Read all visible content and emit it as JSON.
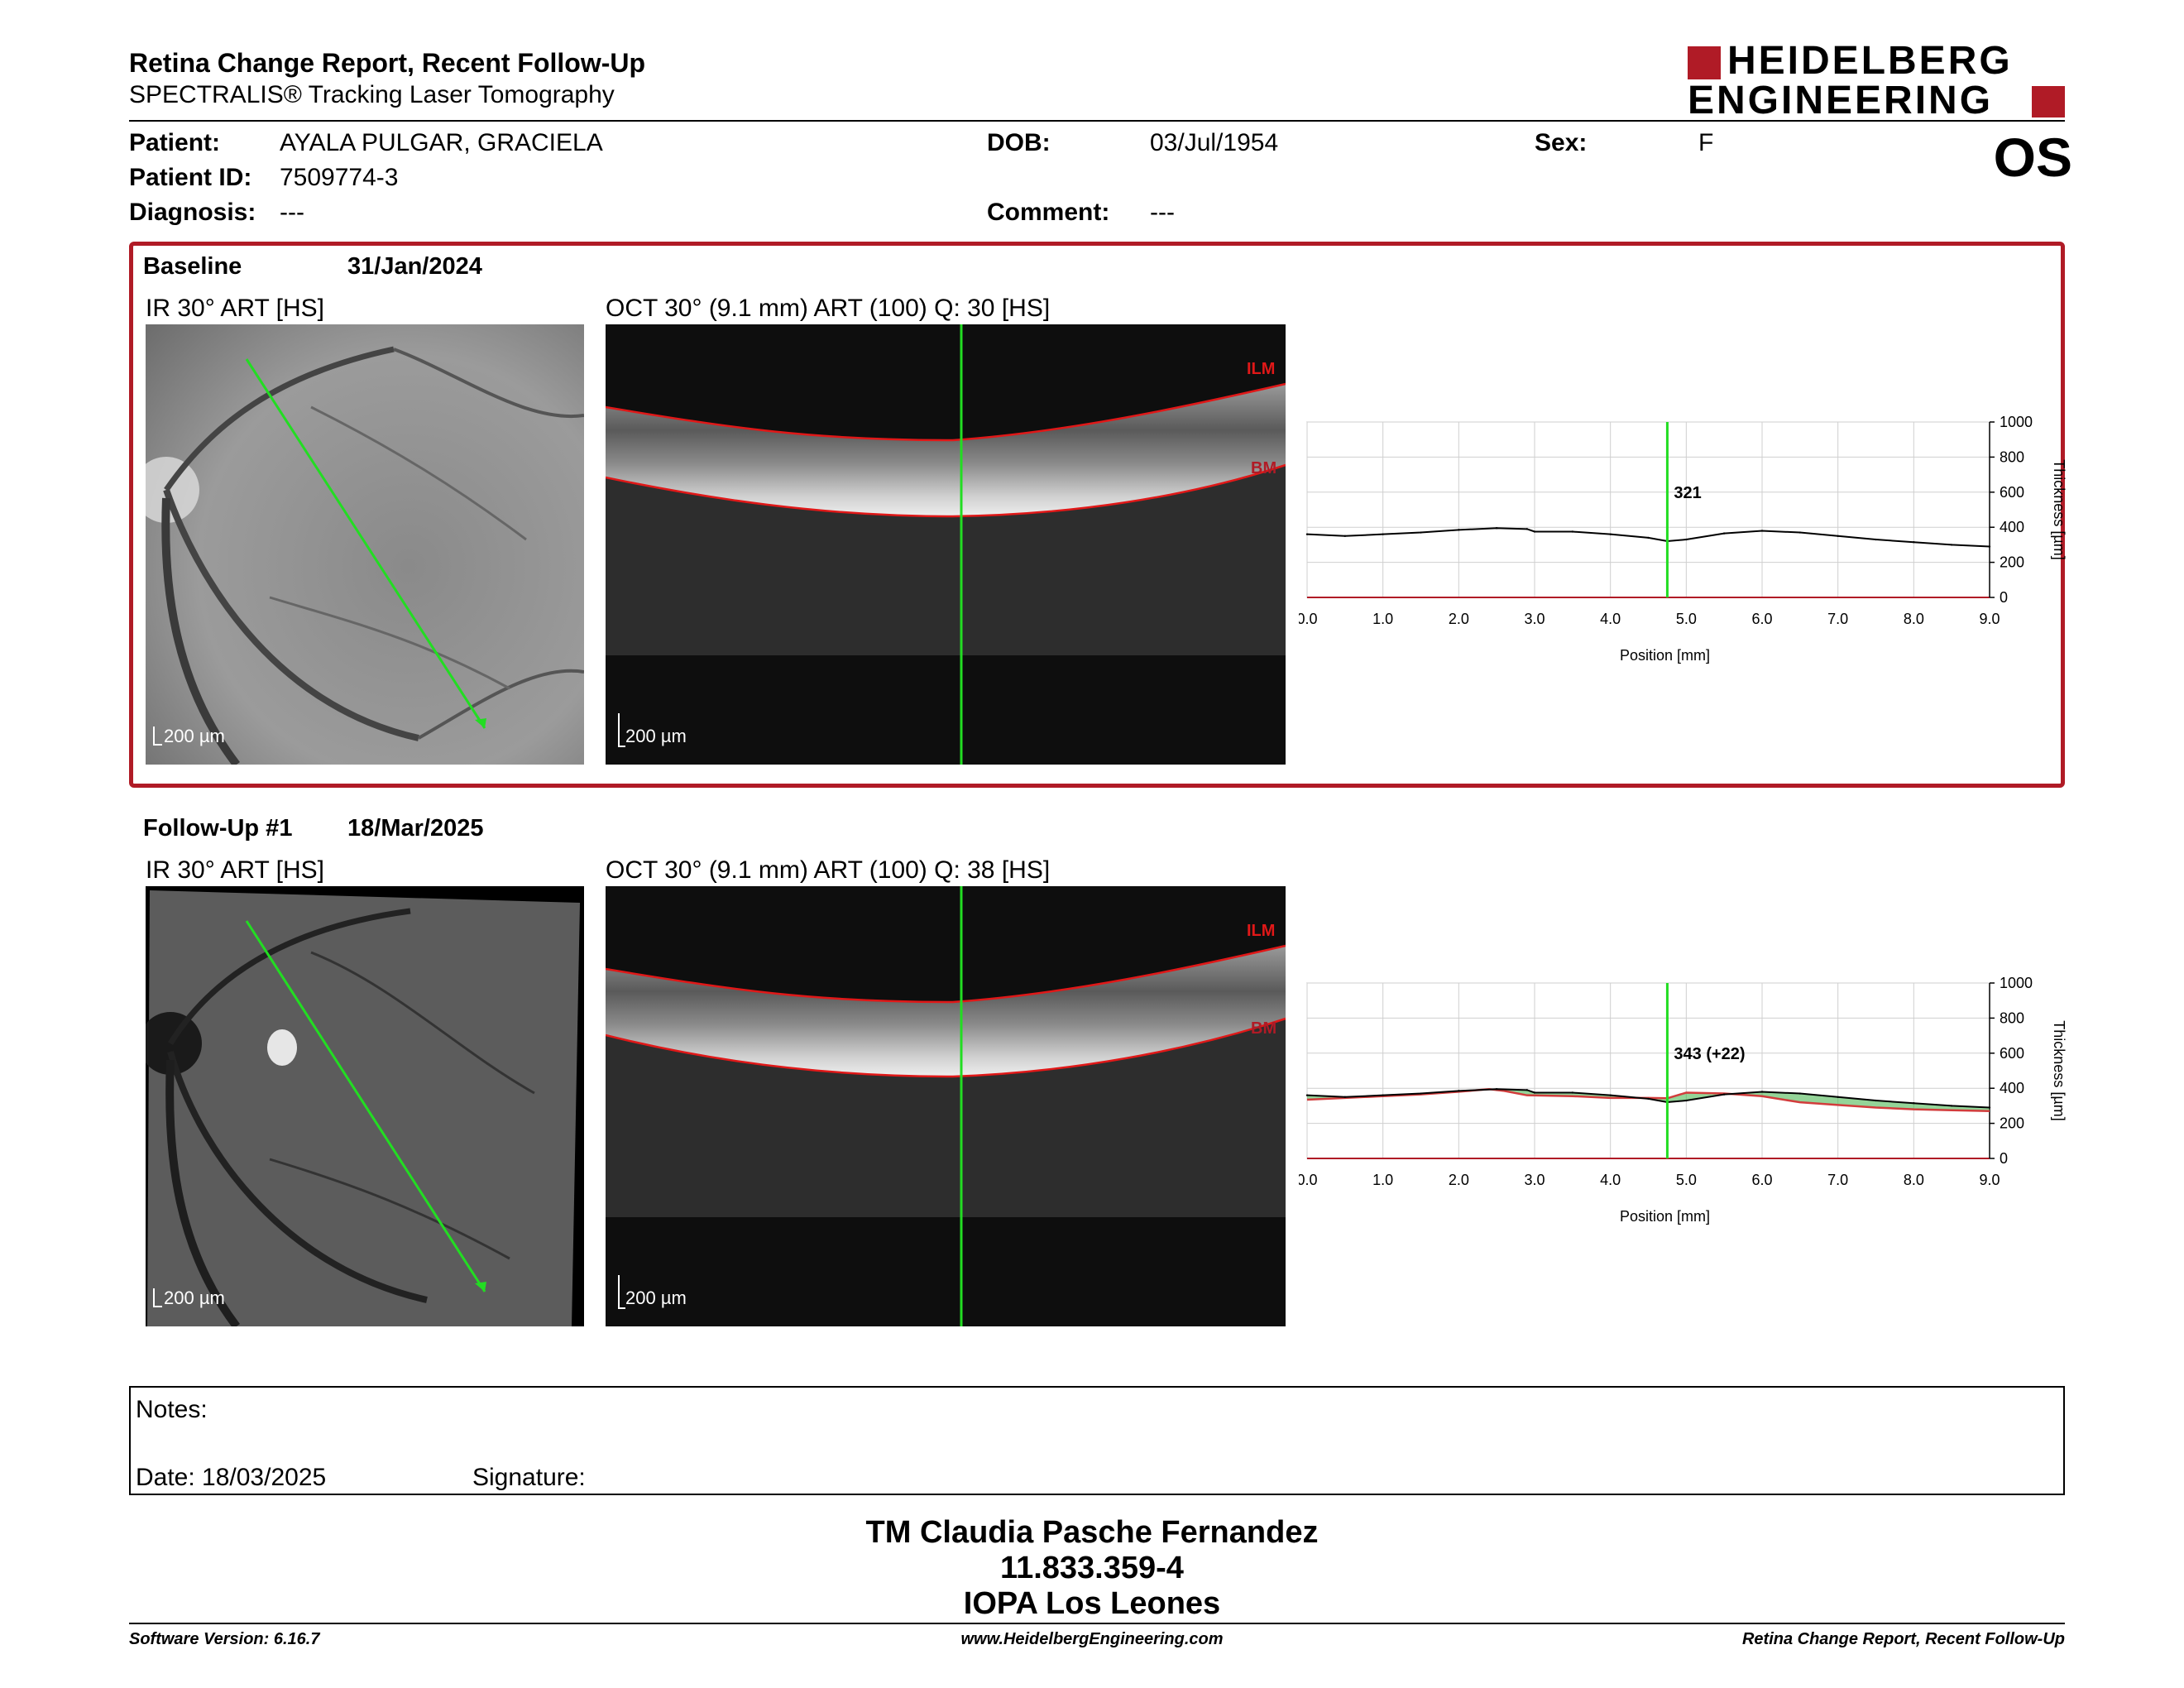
{
  "header": {
    "title": "Retina Change Report, Recent Follow-Up",
    "subtitle": "SPECTRALIS® Tracking Laser Tomography",
    "logo_line1": "HEIDELBERG",
    "logo_line2": "ENGINEERING",
    "eye": "OS"
  },
  "patient": {
    "patient_label": "Patient:",
    "patient_name": "AYALA PULGAR, GRACIELA",
    "id_label": "Patient ID:",
    "patient_id": "7509774-3",
    "diagnosis_label": "Diagnosis:",
    "diagnosis": "---",
    "dob_label": "DOB:",
    "dob": "03/Jul/1954",
    "comment_label": "Comment:",
    "comment": "---",
    "sex_label": "Sex:",
    "sex": "F"
  },
  "baseline": {
    "label": "Baseline",
    "date": "31/Jan/2024",
    "ir_caption": "IR 30° ART [HS]",
    "oct_caption": "OCT 30° (9.1 mm) ART (100) Q: 30 [HS]",
    "scale_ir": "200 µm",
    "scale_oct": "200 µm",
    "ilm_label": "ILM",
    "bm_label": "BM",
    "marker_value": "321"
  },
  "followup": {
    "label": "Follow-Up #1",
    "date": "18/Mar/2025",
    "ir_caption": "IR 30° ART [HS]",
    "oct_caption": "OCT 30° (9.1 mm) ART (100) Q: 38 [HS]",
    "scale_ir": "200 µm",
    "scale_oct": "200 µm",
    "ilm_label": "ILM",
    "bm_label": "BM",
    "marker_value": "343 (+22)"
  },
  "colors": {
    "accent_red": "#b01b26",
    "scan_green": "#22dd22",
    "thickness_increase": "#3cb043",
    "thickness_decrease": "#d23c3c"
  },
  "chart_data": [
    {
      "type": "line",
      "title": "",
      "xlabel": "Position [mm]",
      "ylabel": "Thickness [µm]",
      "xlim": [
        0,
        9.0
      ],
      "ylim": [
        0,
        1000
      ],
      "x_ticks": [
        "0.0",
        "1.0",
        "2.0",
        "3.0",
        "4.0",
        "5.0",
        "6.0",
        "7.0",
        "8.0",
        "9.0"
      ],
      "y_ticks": [
        "0",
        "200",
        "400",
        "600",
        "800",
        "1000"
      ],
      "grid": true,
      "marker_x": 4.75,
      "marker_label": "321",
      "series": [
        {
          "x": [
            0,
            0.5,
            1,
            1.5,
            2,
            2.5,
            2.9,
            3.0,
            3.5,
            4,
            4.5,
            4.75,
            5,
            5.5,
            6,
            6.5,
            7,
            7.5,
            8,
            8.5,
            9.0
          ],
          "values": [
            360,
            350,
            360,
            370,
            385,
            395,
            390,
            375,
            375,
            360,
            340,
            321,
            330,
            365,
            380,
            370,
            350,
            330,
            315,
            300,
            290
          ]
        }
      ]
    },
    {
      "type": "line",
      "title": "",
      "xlabel": "Position [mm]",
      "ylabel": "Thickness [µm]",
      "xlim": [
        0,
        9.0
      ],
      "ylim": [
        0,
        1000
      ],
      "x_ticks": [
        "0.0",
        "1.0",
        "2.0",
        "3.0",
        "4.0",
        "5.0",
        "6.0",
        "7.0",
        "8.0",
        "9.0"
      ],
      "y_ticks": [
        "0",
        "200",
        "400",
        "600",
        "800",
        "1000"
      ],
      "grid": true,
      "marker_x": 4.75,
      "marker_label": "343 (+22)",
      "series": [
        {
          "x": [
            0,
            0.5,
            1,
            1.5,
            2,
            2.5,
            2.9,
            3.0,
            3.5,
            4,
            4.5,
            4.75,
            5,
            5.5,
            6,
            6.5,
            7,
            7.5,
            8,
            8.5,
            9.0
          ],
          "values": [
            360,
            350,
            360,
            370,
            385,
            395,
            390,
            375,
            375,
            360,
            340,
            321,
            330,
            365,
            380,
            370,
            350,
            330,
            315,
            300,
            290
          ]
        },
        {
          "x": [
            0,
            0.5,
            1,
            1.5,
            2,
            2.4,
            2.6,
            2.9,
            3.5,
            4,
            4.5,
            4.75,
            5,
            5.5,
            6,
            6.5,
            7,
            7.5,
            8,
            8.5,
            9.0
          ],
          "values": [
            335,
            345,
            355,
            365,
            380,
            395,
            385,
            360,
            355,
            345,
            345,
            343,
            375,
            370,
            355,
            320,
            305,
            290,
            280,
            275,
            270
          ]
        }
      ]
    }
  ],
  "notes": {
    "notes_label": "Notes:",
    "date_label": "Date: 18/03/2025",
    "signature_label": "Signature:"
  },
  "signature_block": {
    "name": "TM Claudia Pasche Fernandez",
    "rut": "11.833.359-4",
    "institution": "IOPA Los Leones"
  },
  "footer": {
    "software": "Software Version: 6.16.7",
    "website": "www.HeidelbergEngineering.com",
    "report_name": "Retina Change Report, Recent Follow-Up"
  }
}
